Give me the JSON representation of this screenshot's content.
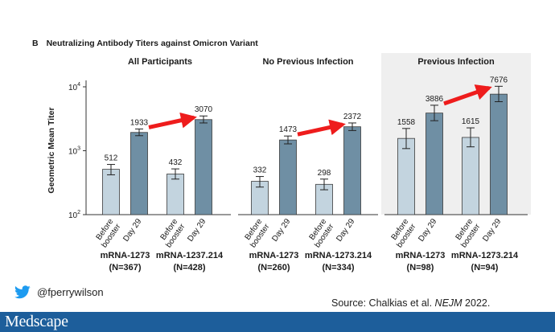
{
  "panel": {
    "letter": "B",
    "title": "Neutralizing Antibody Titers against Omicron Variant"
  },
  "colors": {
    "before_bar": "#c3d4df",
    "day29_bar": "#6f8fa4",
    "shade_panel": "#efefef",
    "arrow": "#ee1c1c",
    "brand": "#1d5e9b",
    "twitter": "#1d9bf0"
  },
  "chart_data": {
    "type": "bar",
    "ylabel": "Geometric Mean Titer",
    "yscale": "log",
    "ylim": [
      100,
      10000
    ],
    "yticks": [
      {
        "value": 100,
        "base": "10",
        "exp": "2"
      },
      {
        "value": 1000,
        "base": "10",
        "exp": "3"
      },
      {
        "value": 10000,
        "base": "10",
        "exp": "4"
      }
    ],
    "category_labels": [
      "Before booster",
      "Day 29"
    ],
    "groups": [
      {
        "title": "All Participants",
        "shaded": false,
        "cohorts": [
          {
            "name": "mRNA-1273",
            "n": "(N=367)",
            "values": [
              512,
              1933
            ],
            "labels": [
              "512",
              "1933"
            ],
            "ci": [
              [
                420,
                610
              ],
              [
                1720,
                2190
              ]
            ]
          },
          {
            "name": "mRNA-1237.214",
            "n": "(N=428)",
            "values": [
              432,
              3070
            ],
            "labels": [
              "432",
              "3070"
            ],
            "ci": [
              [
                360,
                520
              ],
              [
                2720,
                3500
              ]
            ]
          }
        ],
        "arrow": {
          "from_value": 1933,
          "to_value": 3070
        }
      },
      {
        "title": "No Previous Infection",
        "shaded": false,
        "cohorts": [
          {
            "name": "mRNA-1273",
            "n": "(N=260)",
            "values": [
              332,
              1473
            ],
            "labels": [
              "332",
              "1473"
            ],
            "ci": [
              [
                270,
                395
              ],
              [
                1280,
                1700
              ]
            ]
          },
          {
            "name": "mRNA-1273.214",
            "n": "(N=334)",
            "values": [
              298,
              2372
            ],
            "labels": [
              "298",
              "2372"
            ],
            "ci": [
              [
                245,
                360
              ],
              [
                2070,
                2720
              ]
            ]
          }
        ],
        "arrow": {
          "from_value": 1473,
          "to_value": 2372
        }
      },
      {
        "title": "Previous Infection",
        "shaded": true,
        "cohorts": [
          {
            "name": "mRNA-1273",
            "n": "(N=98)",
            "values": [
              1558,
              3886
            ],
            "labels": [
              "1558",
              "3886"
            ],
            "ci": [
              [
                1080,
                2230
              ],
              [
                2950,
                5150
              ]
            ]
          },
          {
            "name": "mRNA-1273.214",
            "n": "(N=94)",
            "values": [
              1615,
              7676
            ],
            "labels": [
              "1615",
              "7676"
            ],
            "ci": [
              [
                1150,
                2280
              ],
              [
                5850,
                10200
              ]
            ]
          }
        ],
        "arrow": {
          "from_value": 3886,
          "to_value": 7676
        }
      }
    ]
  },
  "footer": {
    "twitter_handle": "@fperrywilson",
    "source_prefix": "Source: Chalkias et al. ",
    "source_journal": "NEJM",
    "source_suffix": " 2022.",
    "brand_name": "Medscape"
  }
}
